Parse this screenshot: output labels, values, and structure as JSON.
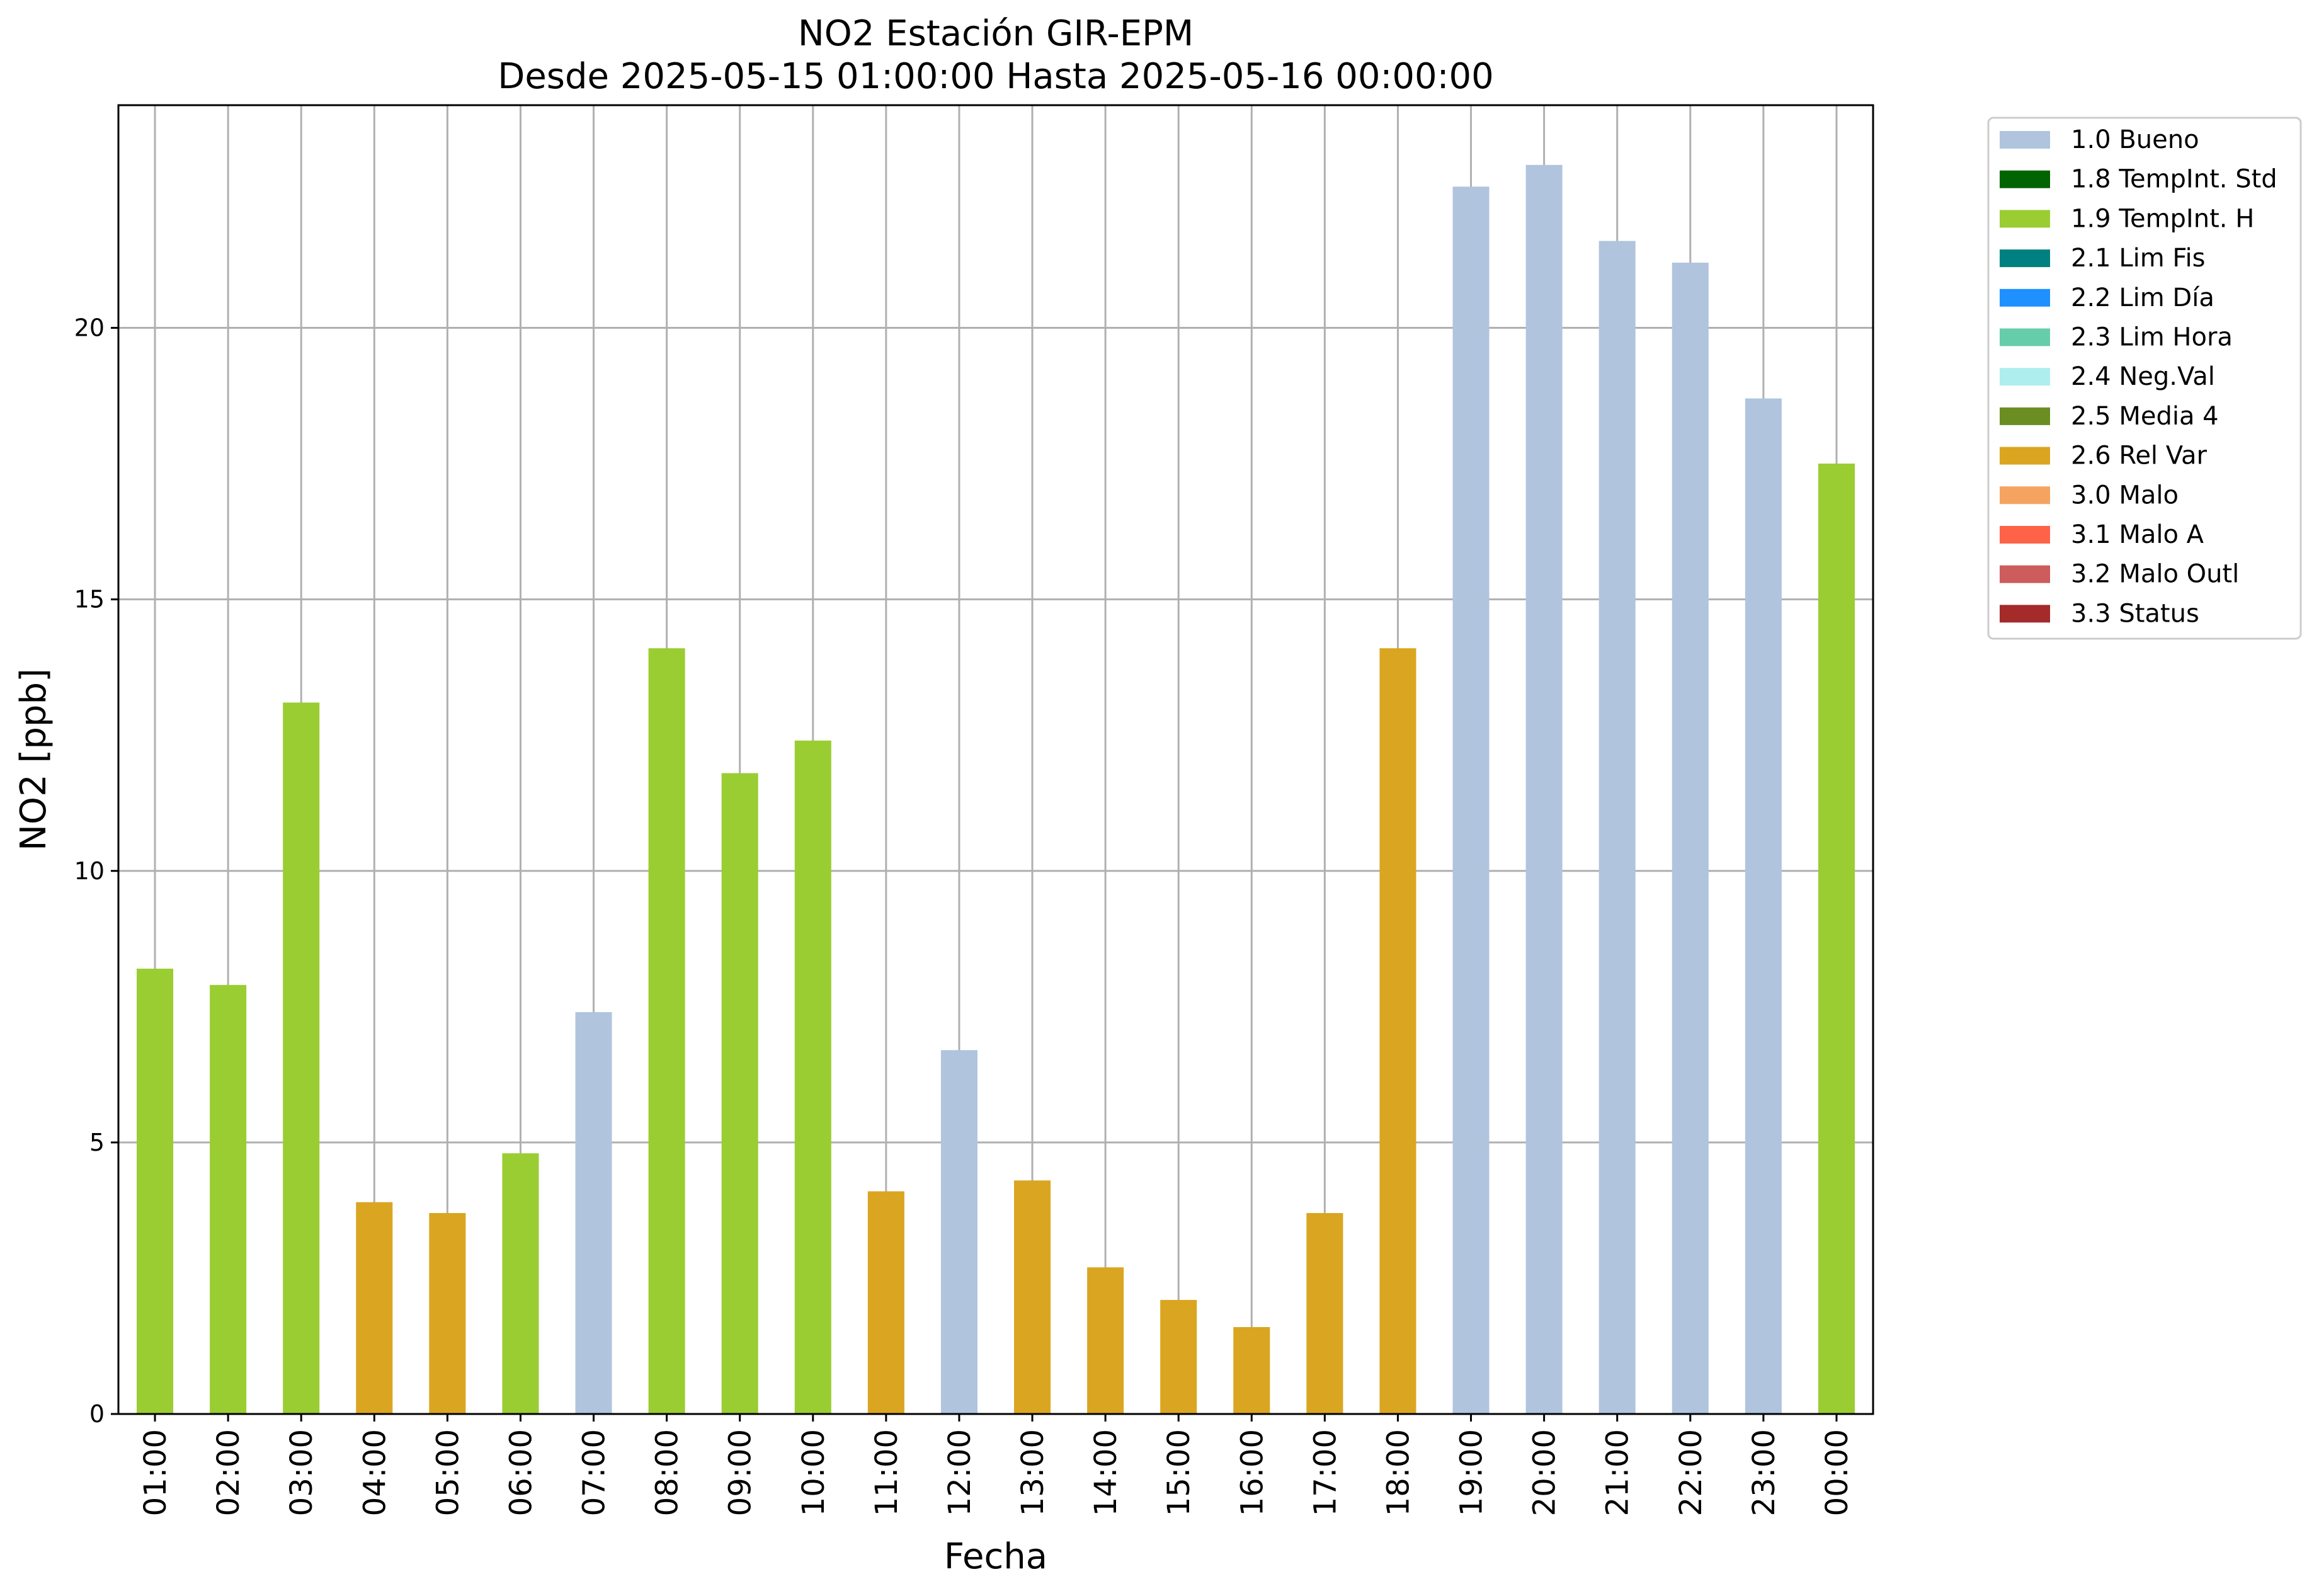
{
  "chart_data": {
    "type": "bar",
    "title": "NO2 Estación GIR-EPM",
    "subtitle": "Desde 2025-05-15 01:00:00 Hasta 2025-05-16 00:00:00",
    "xlabel": "Fecha",
    "ylabel": "NO2 [ppb]",
    "ylim": [
      0,
      24.1
    ],
    "yticks": [
      0,
      5,
      10,
      15,
      20
    ],
    "grid": true,
    "legend_position": "outside-right-top",
    "categories": [
      "01:00",
      "02:00",
      "03:00",
      "04:00",
      "05:00",
      "06:00",
      "07:00",
      "08:00",
      "09:00",
      "10:00",
      "11:00",
      "12:00",
      "13:00",
      "14:00",
      "15:00",
      "16:00",
      "17:00",
      "18:00",
      "19:00",
      "20:00",
      "21:00",
      "22:00",
      "23:00",
      "00:00"
    ],
    "values": [
      8.2,
      7.9,
      13.1,
      3.9,
      3.7,
      4.8,
      7.4,
      14.1,
      11.8,
      12.4,
      4.1,
      6.7,
      4.3,
      2.7,
      2.1,
      1.6,
      3.7,
      14.1,
      22.6,
      23.0,
      21.6,
      21.2,
      18.7,
      17.5
    ],
    "flags": [
      "1.9",
      "1.9",
      "1.9",
      "2.6",
      "2.6",
      "1.9",
      "1.0",
      "1.9",
      "1.9",
      "1.9",
      "2.6",
      "1.0",
      "2.6",
      "2.6",
      "2.6",
      "2.6",
      "2.6",
      "2.6",
      "1.0",
      "1.0",
      "1.0",
      "1.0",
      "1.0",
      "1.9"
    ],
    "legend": [
      {
        "key": "1.0",
        "label": "1.0 Bueno",
        "color": "#b0c4de"
      },
      {
        "key": "1.8",
        "label": "1.8 TempInt. Std",
        "color": "#006400"
      },
      {
        "key": "1.9",
        "label": "1.9 TempInt. H",
        "color": "#9acd32"
      },
      {
        "key": "2.1",
        "label": "2.1 Lim Fis",
        "color": "#008080"
      },
      {
        "key": "2.2",
        "label": "2.2 Lim Día",
        "color": "#1e90ff"
      },
      {
        "key": "2.3",
        "label": "2.3 Lim Hora",
        "color": "#66cdaa"
      },
      {
        "key": "2.4",
        "label": "2.4 Neg.Val",
        "color": "#afeeee"
      },
      {
        "key": "2.5",
        "label": "2.5 Media 4",
        "color": "#6b8e23"
      },
      {
        "key": "2.6",
        "label": "2.6 Rel Var",
        "color": "#daa520"
      },
      {
        "key": "3.0",
        "label": "3.0 Malo",
        "color": "#f4a460"
      },
      {
        "key": "3.1",
        "label": "3.1 Malo A",
        "color": "#ff6347"
      },
      {
        "key": "3.2",
        "label": "3.2 Malo Outl",
        "color": "#cd5c5c"
      },
      {
        "key": "3.3",
        "label": "3.3 Status",
        "color": "#a52a2a"
      }
    ]
  }
}
